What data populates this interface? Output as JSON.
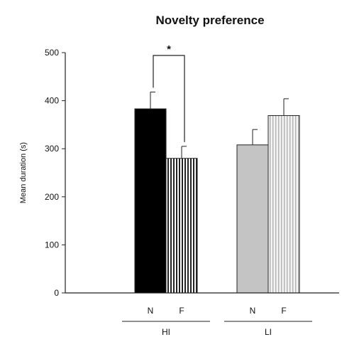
{
  "chart_data": {
    "type": "bar",
    "title": "Novelty preference",
    "ylabel": "Mean duration (s)",
    "xlabel": "",
    "ylim": [
      0,
      500
    ],
    "yticks": [
      0,
      100,
      200,
      300,
      400,
      500
    ],
    "grid": false,
    "groups": [
      {
        "name": "HI",
        "bars": [
          {
            "category": "N",
            "value": 383,
            "error": 35,
            "color": "#000000",
            "pattern": "solid"
          },
          {
            "category": "F",
            "value": 280,
            "error": 25,
            "color": "#ffffff",
            "pattern": "dense-vertical-stripes"
          }
        ]
      },
      {
        "name": "LI",
        "bars": [
          {
            "category": "N",
            "value": 308,
            "error": 32,
            "color": "#c4c4c4",
            "pattern": "solid"
          },
          {
            "category": "F",
            "value": 369,
            "error": 35,
            "color": "#f0f0f0",
            "pattern": "light-vertical-stripes"
          }
        ]
      }
    ],
    "annotations": [
      {
        "text": "*",
        "between": [
          "HI N",
          "HI F"
        ]
      }
    ]
  }
}
